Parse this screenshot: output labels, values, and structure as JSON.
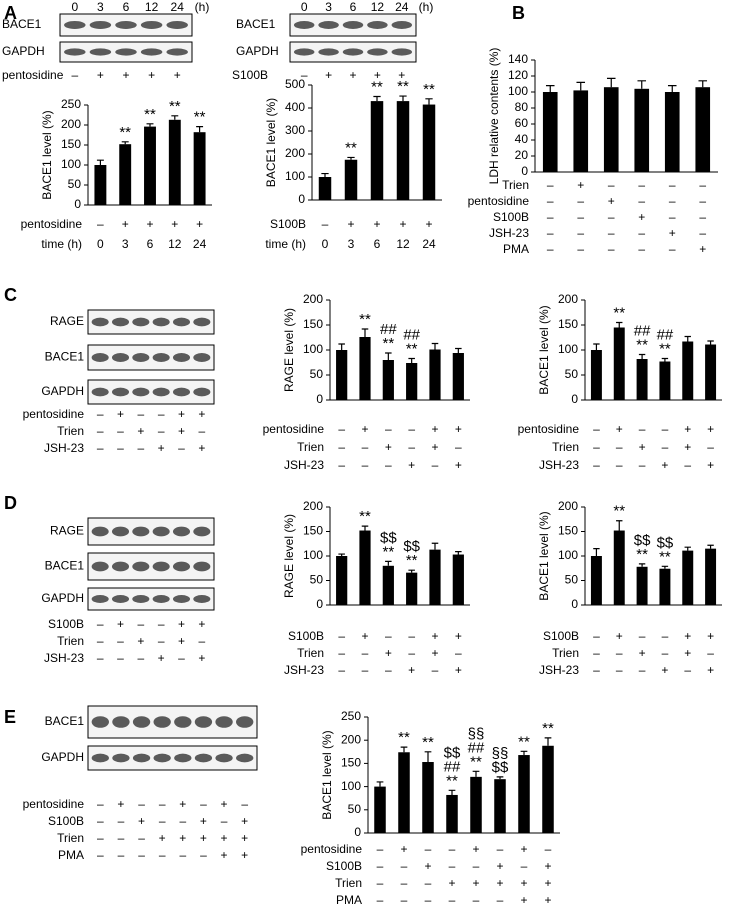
{
  "panels": [
    "A",
    "B",
    "C",
    "D",
    "E"
  ],
  "blots": [
    {
      "header": [
        "0",
        "3",
        "6",
        "12",
        "24",
        "(h)"
      ],
      "bands": [
        "BACE1",
        "GAPDH"
      ],
      "rows": [
        {
          "label": "pentosidine",
          "signs": [
            "–",
            "+",
            "+",
            "+",
            "+"
          ]
        }
      ]
    },
    {
      "header": [
        "0",
        "3",
        "6",
        "12",
        "24",
        "(h)"
      ],
      "bands": [
        "BACE1",
        "GAPDH"
      ],
      "rows": [
        {
          "label": "S100B",
          "signs": [
            "–",
            "+",
            "+",
            "+",
            "+"
          ]
        }
      ]
    },
    {
      "bands": [
        "RAGE",
        "BACE1",
        "GAPDH"
      ],
      "rows": [
        {
          "label": "pentosidine",
          "signs": [
            "–",
            "+",
            "–",
            "–",
            "+",
            "+"
          ]
        },
        {
          "label": "Trien",
          "signs": [
            "–",
            "–",
            "+",
            "–",
            "+",
            "–"
          ]
        },
        {
          "label": "JSH-23",
          "signs": [
            "–",
            "–",
            "–",
            "+",
            "–",
            "+"
          ]
        }
      ]
    },
    {
      "bands": [
        "RAGE",
        "BACE1",
        "GAPDH"
      ],
      "rows": [
        {
          "label": "S100B",
          "signs": [
            "–",
            "+",
            "–",
            "–",
            "+",
            "+"
          ]
        },
        {
          "label": "Trien",
          "signs": [
            "–",
            "–",
            "+",
            "–",
            "+",
            "–"
          ]
        },
        {
          "label": "JSH-23",
          "signs": [
            "–",
            "–",
            "–",
            "+",
            "–",
            "+"
          ]
        }
      ]
    },
    {
      "bands": [
        "BACE1",
        "GAPDH"
      ],
      "rows": [
        {
          "label": "pentosidine",
          "signs": [
            "–",
            "+",
            "–",
            "–",
            "+",
            "–",
            "+",
            "–"
          ]
        },
        {
          "label": "S100B",
          "signs": [
            "–",
            "–",
            "+",
            "–",
            "–",
            "+",
            "–",
            "+"
          ]
        },
        {
          "label": "Trien",
          "signs": [
            "–",
            "–",
            "–",
            "+",
            "+",
            "+",
            "+",
            "+"
          ]
        },
        {
          "label": "PMA",
          "signs": [
            "–",
            "–",
            "–",
            "–",
            "–",
            "–",
            "+",
            "+"
          ]
        }
      ]
    }
  ],
  "chart_data": [
    {
      "type": "bar",
      "y_label": "BACE1 level (%)",
      "color": "#000000",
      "ylim": [
        0,
        250
      ],
      "yticks": [
        0,
        50,
        100,
        150,
        200,
        250
      ],
      "values": [
        100,
        152,
        196,
        213,
        182
      ],
      "errors": [
        12,
        6,
        7,
        10,
        14
      ],
      "annotations": [
        [],
        [
          "**"
        ],
        [
          "**"
        ],
        [
          "**"
        ],
        [
          "**"
        ]
      ],
      "treatments": [
        {
          "label": "pentosidine",
          "signs": [
            "–",
            "+",
            "+",
            "+",
            "+"
          ]
        },
        {
          "label": "time (h)",
          "signs": [
            "0",
            "3",
            "6",
            "12",
            "24"
          ]
        }
      ]
    },
    {
      "type": "bar",
      "y_label": "BACE1 level (%)",
      "color": "#000000",
      "ylim": [
        0,
        500
      ],
      "yticks": [
        0,
        100,
        200,
        300,
        400,
        500
      ],
      "values": [
        100,
        175,
        430,
        430,
        415
      ],
      "errors": [
        15,
        10,
        20,
        22,
        25
      ],
      "annotations": [
        [],
        [
          "**"
        ],
        [
          "**"
        ],
        [
          "**"
        ],
        [
          "**"
        ]
      ],
      "treatments": [
        {
          "label": "S100B",
          "signs": [
            "–",
            "+",
            "+",
            "+",
            "+"
          ]
        },
        {
          "label": "time (h)",
          "signs": [
            "0",
            "3",
            "6",
            "12",
            "24"
          ]
        }
      ]
    },
    {
      "type": "bar",
      "y_label": "LDH relative contents (%)",
      "color": "#000000",
      "ylim": [
        0,
        140
      ],
      "yticks": [
        0,
        20,
        40,
        60,
        80,
        100,
        120,
        140
      ],
      "values": [
        100,
        102,
        106,
        104,
        100,
        106
      ],
      "errors": [
        8,
        10,
        11,
        10,
        8,
        8
      ],
      "annotations": [
        [],
        [],
        [],
        [],
        [],
        []
      ],
      "treatments": [
        {
          "label": "Trien",
          "signs": [
            "–",
            "+",
            "–",
            "–",
            "–",
            "–"
          ]
        },
        {
          "label": "pentosidine",
          "signs": [
            "–",
            "–",
            "+",
            "–",
            "–",
            "–"
          ]
        },
        {
          "label": "S100B",
          "signs": [
            "–",
            "–",
            "–",
            "+",
            "–",
            "–"
          ]
        },
        {
          "label": "JSH-23",
          "signs": [
            "–",
            "–",
            "–",
            "–",
            "+",
            "–"
          ]
        },
        {
          "label": "PMA",
          "signs": [
            "–",
            "–",
            "–",
            "–",
            "–",
            "+"
          ]
        }
      ]
    },
    {
      "type": "bar",
      "y_label": "RAGE level (%)",
      "color": "#000000",
      "ylim": [
        0,
        200
      ],
      "yticks": [
        0,
        50,
        100,
        150,
        200
      ],
      "values": [
        100,
        126,
        80,
        74,
        101,
        94
      ],
      "errors": [
        12,
        16,
        14,
        9,
        12,
        9
      ],
      "annotations": [
        [],
        [
          "**"
        ],
        [
          "##",
          "**"
        ],
        [
          "##",
          "**"
        ],
        [],
        []
      ],
      "treatments": [
        {
          "label": "pentosidine",
          "signs": [
            "–",
            "+",
            "–",
            "–",
            "+",
            "+"
          ]
        },
        {
          "label": "Trien",
          "signs": [
            "–",
            "–",
            "+",
            "–",
            "+",
            "–"
          ]
        },
        {
          "label": "JSH-23",
          "signs": [
            "–",
            "–",
            "–",
            "+",
            "–",
            "+"
          ]
        }
      ]
    },
    {
      "type": "bar",
      "y_label": "BACE1 level (%)",
      "color": "#000000",
      "ylim": [
        0,
        200
      ],
      "yticks": [
        0,
        50,
        100,
        150,
        200
      ],
      "values": [
        100,
        145,
        82,
        77,
        117,
        111
      ],
      "errors": [
        12,
        10,
        9,
        6,
        10,
        7
      ],
      "annotations": [
        [],
        [
          "**"
        ],
        [
          "##",
          "**"
        ],
        [
          "##",
          "**"
        ],
        [],
        []
      ],
      "treatments": [
        {
          "label": "pentosidine",
          "signs": [
            "–",
            "+",
            "–",
            "–",
            "+",
            "+"
          ]
        },
        {
          "label": "Trien",
          "signs": [
            "–",
            "–",
            "+",
            "–",
            "+",
            "–"
          ]
        },
        {
          "label": "JSH-23",
          "signs": [
            "–",
            "–",
            "–",
            "+",
            "–",
            "+"
          ]
        }
      ]
    },
    {
      "type": "bar",
      "y_label": "RAGE level (%)",
      "color": "#000000",
      "ylim": [
        0,
        200
      ],
      "yticks": [
        0,
        50,
        100,
        150,
        200
      ],
      "values": [
        100,
        152,
        80,
        66,
        113,
        103
      ],
      "errors": [
        4,
        9,
        9,
        5,
        13,
        6
      ],
      "annotations": [
        [],
        [
          "**"
        ],
        [
          "$$",
          "**"
        ],
        [
          "$$",
          "**"
        ],
        [],
        []
      ],
      "treatments": [
        {
          "label": "S100B",
          "signs": [
            "–",
            "+",
            "–",
            "–",
            "+",
            "+"
          ]
        },
        {
          "label": "Trien",
          "signs": [
            "–",
            "–",
            "+",
            "–",
            "+",
            "–"
          ]
        },
        {
          "label": "JSH-23",
          "signs": [
            "–",
            "–",
            "–",
            "+",
            "–",
            "+"
          ]
        }
      ]
    },
    {
      "type": "bar",
      "y_label": "BACE1 level (%)",
      "color": "#000000",
      "ylim": [
        0,
        200
      ],
      "yticks": [
        0,
        50,
        100,
        150,
        200
      ],
      "values": [
        100,
        152,
        78,
        74,
        111,
        115
      ],
      "errors": [
        15,
        20,
        6,
        5,
        7,
        7
      ],
      "annotations": [
        [],
        [
          "**"
        ],
        [
          "$$",
          "**"
        ],
        [
          "$$",
          "**"
        ],
        [],
        []
      ],
      "treatments": [
        {
          "label": "S100B",
          "signs": [
            "–",
            "+",
            "–",
            "–",
            "+",
            "+"
          ]
        },
        {
          "label": "Trien",
          "signs": [
            "–",
            "–",
            "+",
            "–",
            "+",
            "–"
          ]
        },
        {
          "label": "JSH-23",
          "signs": [
            "–",
            "–",
            "–",
            "+",
            "–",
            "+"
          ]
        }
      ]
    },
    {
      "type": "bar",
      "y_label": "BACE1 level (%)",
      "color": "#000000",
      "ylim": [
        0,
        250
      ],
      "yticks": [
        0,
        50,
        100,
        150,
        200,
        250
      ],
      "values": [
        100,
        174,
        153,
        82,
        121,
        116,
        168,
        188
      ],
      "errors": [
        10,
        11,
        22,
        10,
        12,
        5,
        8,
        17
      ],
      "annotations": [
        [],
        [
          "**"
        ],
        [
          "**"
        ],
        [
          "$$",
          "##",
          "**"
        ],
        [
          "§§",
          "##",
          "**"
        ],
        [
          "§§",
          "$$"
        ],
        [
          "**"
        ],
        [
          "**"
        ]
      ],
      "treatments": [
        {
          "label": "pentosidine",
          "signs": [
            "–",
            "+",
            "–",
            "–",
            "+",
            "–",
            "+",
            "–"
          ]
        },
        {
          "label": "S100B",
          "signs": [
            "–",
            "–",
            "+",
            "–",
            "–",
            "+",
            "–",
            "+"
          ]
        },
        {
          "label": "Trien",
          "signs": [
            "–",
            "–",
            "–",
            "+",
            "+",
            "+",
            "+",
            "+"
          ]
        },
        {
          "label": "PMA",
          "signs": [
            "–",
            "–",
            "–",
            "–",
            "–",
            "–",
            "+",
            "+"
          ]
        }
      ]
    }
  ]
}
